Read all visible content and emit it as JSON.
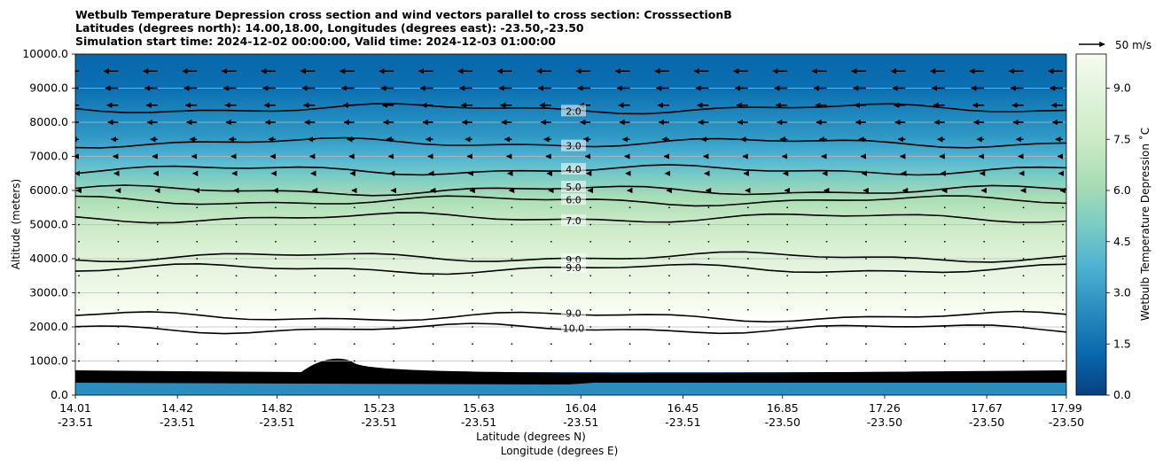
{
  "title": {
    "line1": "Wetbulb Temperature Depression cross section and wind vectors parallel to cross section: CrosssectionB",
    "line2": "Latitudes (degrees north): 14.00,18.00, Longitudes (degrees east): -23.50,-23.50",
    "line3": "Simulation start time: 2024-12-02 00:00:00, Valid time: 2024-12-03 01:00:00"
  },
  "chart_data": {
    "type": "contour",
    "title": "Wetbulb Temperature Depression cross section and wind vectors parallel to cross section: CrosssectionB",
    "ylabel": "Altitude (meters)",
    "xlabel_lat": "Latitude (degrees N)",
    "xlabel_lon": "Longitude (degrees E)",
    "ylim": [
      0,
      10000
    ],
    "yticks": [
      "0.0",
      "1000.0",
      "2000.0",
      "3000.0",
      "4000.0",
      "5000.0",
      "6000.0",
      "7000.0",
      "8000.0",
      "9000.0",
      "10000.0"
    ],
    "xticks": [
      {
        "lat": "14.01",
        "lon": "-23.51"
      },
      {
        "lat": "14.42",
        "lon": "-23.51"
      },
      {
        "lat": "14.82",
        "lon": "-23.51"
      },
      {
        "lat": "15.23",
        "lon": "-23.51"
      },
      {
        "lat": "15.63",
        "lon": "-23.51"
      },
      {
        "lat": "16.04",
        "lon": "-23.51"
      },
      {
        "lat": "16.45",
        "lon": "-23.51"
      },
      {
        "lat": "16.85",
        "lon": "-23.50"
      },
      {
        "lat": "17.26",
        "lon": "-23.50"
      },
      {
        "lat": "17.67",
        "lon": "-23.50"
      },
      {
        "lat": "17.99",
        "lon": "-23.50"
      }
    ],
    "colorbar": {
      "label": "Wetbulb Temperature Depression ˚C",
      "range": [
        0,
        10
      ],
      "ticks": [
        "0.0",
        "1.5",
        "3.0",
        "4.5",
        "6.0",
        "7.5",
        "9.0"
      ],
      "colormap": "GnBu_r"
    },
    "contour_levels": [
      {
        "label": "2.0",
        "altitude": 8400
      },
      {
        "label": "3.0",
        "altitude": 7400
      },
      {
        "label": "4.0",
        "altitude": 6600
      },
      {
        "label": "5.0",
        "altitude": 6000
      },
      {
        "label": "6.0",
        "altitude": 5700
      },
      {
        "label": "7.0",
        "altitude": 5200
      },
      {
        "label": "9.0",
        "altitude": 4050
      },
      {
        "label": "9.0",
        "altitude": 3700
      },
      {
        "label": "9.0",
        "altitude": 2300
      },
      {
        "label": "10.0",
        "altitude": 1950
      }
    ],
    "wind_reference": {
      "label": "50 m/s",
      "speed": 50
    },
    "wind_rows": [
      {
        "altitude": 9500,
        "u": -28
      },
      {
        "altitude": 9000,
        "u": -25
      },
      {
        "altitude": 8500,
        "u": -22
      },
      {
        "altitude": 8000,
        "u": -20
      },
      {
        "altitude": 7500,
        "u": -14
      },
      {
        "altitude": 7000,
        "u": -10
      },
      {
        "altitude": 6500,
        "u": -8
      },
      {
        "altitude": 6000,
        "u": -5
      },
      {
        "altitude": 5500,
        "u": -3
      },
      {
        "altitude": 5000,
        "u": -1.5
      },
      {
        "altitude": 4500,
        "u": -1
      },
      {
        "altitude": 4000,
        "u": -0.5
      },
      {
        "altitude": 3500,
        "u": -0.5
      },
      {
        "altitude": 3000,
        "u": -0.3
      },
      {
        "altitude": 2500,
        "u": -0.3
      },
      {
        "altitude": 2000,
        "u": -0.2
      },
      {
        "altitude": 1500,
        "u": -0.2
      },
      {
        "altitude": 1000,
        "u": -0.2
      }
    ]
  }
}
